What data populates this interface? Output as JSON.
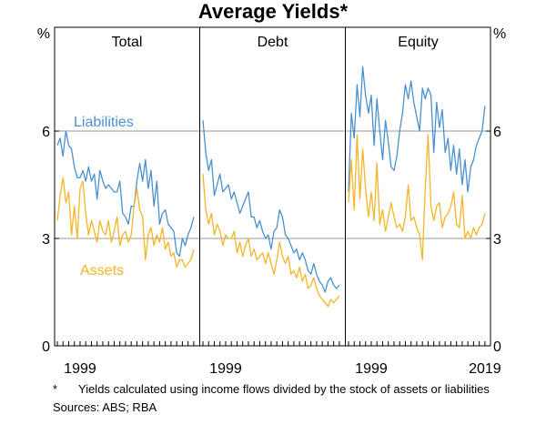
{
  "chart_data": {
    "type": "line",
    "title": "Average Yields*",
    "unit_label_left": "%",
    "unit_label_right": "%",
    "ylim": [
      0,
      8.9
    ],
    "yticks": [
      0,
      3,
      6
    ],
    "ytick_labels": [
      "0",
      "3",
      "6"
    ],
    "series_styles": [
      {
        "name": "Liabilities",
        "color": "#4a90d0"
      },
      {
        "name": "Assets",
        "color": "#f5b526"
      }
    ],
    "panels": [
      {
        "title": "Total",
        "xlim": [
          1995.0,
          2019.5
        ],
        "xtick_labels": [
          {
            "x": 1999,
            "label": "1999"
          }
        ],
        "series": [
          {
            "name": "Liabilities",
            "x": [
              1995.0,
              1995.5,
              1996.0,
              1996.5,
              1997.0,
              1997.5,
              1998.0,
              1998.5,
              1999.0,
              1999.5,
              2000.0,
              2000.5,
              2001.0,
              2001.5,
              2002.0,
              2002.5,
              2003.0,
              2003.5,
              2004.0,
              2004.5,
              2005.0,
              2005.5,
              2006.0,
              2006.5,
              2007.0,
              2007.5,
              2008.0,
              2008.5,
              2009.0,
              2009.5,
              2010.0,
              2010.5,
              2011.0,
              2011.5,
              2012.0,
              2012.5,
              2013.0,
              2013.5,
              2014.0,
              2014.5,
              2015.0,
              2015.5,
              2016.0,
              2016.5,
              2017.0,
              2017.5,
              2018.0,
              2018.5,
              2019.0
            ],
            "y": [
              5.6,
              5.8,
              5.3,
              6.0,
              5.6,
              5.5,
              5.0,
              4.7,
              4.7,
              4.9,
              4.6,
              5.0,
              4.6,
              4.8,
              4.1,
              4.9,
              4.6,
              4.4,
              4.5,
              4.4,
              4.3,
              4.3,
              4.6,
              3.7,
              3.6,
              3.4,
              3.9,
              3.9,
              4.6,
              5.1,
              4.6,
              5.2,
              4.4,
              4.9,
              3.9,
              4.6,
              3.4,
              3.7,
              3.8,
              3.4,
              3.3,
              3.2,
              2.6,
              2.5,
              3.0,
              2.8,
              3.1,
              3.3,
              3.6
            ]
          },
          {
            "name": "Assets",
            "x": [
              1995.0,
              1995.5,
              1996.0,
              1996.5,
              1997.0,
              1997.5,
              1998.0,
              1998.5,
              1999.0,
              1999.5,
              2000.0,
              2000.5,
              2001.0,
              2001.5,
              2002.0,
              2002.5,
              2003.0,
              2003.5,
              2004.0,
              2004.5,
              2005.0,
              2005.5,
              2006.0,
              2006.5,
              2007.0,
              2007.5,
              2008.0,
              2008.5,
              2009.0,
              2009.5,
              2010.0,
              2010.5,
              2011.0,
              2011.5,
              2012.0,
              2012.5,
              2013.0,
              2013.5,
              2014.0,
              2014.5,
              2015.0,
              2015.5,
              2016.0,
              2016.5,
              2017.0,
              2017.5,
              2018.0,
              2018.5,
              2019.0
            ],
            "y": [
              3.5,
              4.2,
              4.7,
              4.0,
              4.3,
              3.1,
              3.9,
              3.0,
              4.4,
              4.6,
              3.7,
              3.1,
              3.5,
              3.2,
              2.9,
              3.5,
              3.2,
              3.1,
              3.5,
              2.9,
              3.2,
              3.6,
              2.8,
              3.1,
              3.2,
              2.9,
              3.1,
              3.9,
              4.4,
              3.8,
              3.6,
              2.4,
              3.1,
              3.3,
              2.8,
              3.1,
              2.9,
              3.3,
              2.7,
              2.9,
              2.5,
              2.6,
              2.2,
              2.4,
              2.4,
              2.2,
              2.3,
              2.4,
              2.7
            ]
          }
        ]
      },
      {
        "title": "Debt",
        "xlim": [
          1995.0,
          2019.5
        ],
        "xtick_labels": [
          {
            "x": 1999,
            "label": "1999"
          }
        ],
        "series": [
          {
            "name": "Liabilities",
            "x": [
              1995.0,
              1995.5,
              1996.0,
              1996.5,
              1997.0,
              1997.5,
              1998.0,
              1998.5,
              1999.0,
              1999.5,
              2000.0,
              2000.5,
              2001.0,
              2001.5,
              2002.0,
              2002.5,
              2003.0,
              2003.5,
              2004.0,
              2004.5,
              2005.0,
              2005.5,
              2006.0,
              2006.5,
              2007.0,
              2007.5,
              2008.0,
              2008.5,
              2009.0,
              2009.5,
              2010.0,
              2010.5,
              2011.0,
              2011.5,
              2012.0,
              2012.5,
              2013.0,
              2013.5,
              2014.0,
              2014.5,
              2015.0,
              2015.5,
              2016.0,
              2016.5,
              2017.0,
              2017.5,
              2018.0,
              2018.5,
              2019.0
            ],
            "y": [
              6.3,
              5.4,
              4.9,
              5.2,
              4.2,
              4.5,
              4.8,
              4.3,
              4.4,
              4.5,
              4.1,
              4.3,
              4.0,
              3.7,
              3.9,
              4.1,
              4.3,
              3.6,
              3.6,
              3.3,
              3.5,
              3.2,
              3.0,
              3.1,
              2.7,
              3.2,
              3.3,
              3.8,
              3.6,
              3.1,
              3.0,
              2.8,
              2.6,
              2.7,
              2.4,
              2.6,
              2.4,
              2.1,
              2.0,
              2.3,
              2.0,
              1.8,
              1.7,
              1.5,
              1.8,
              1.9,
              1.7,
              1.6,
              1.7
            ]
          },
          {
            "name": "Assets",
            "x": [
              1995.0,
              1995.5,
              1996.0,
              1996.5,
              1997.0,
              1997.5,
              1998.0,
              1998.5,
              1999.0,
              1999.5,
              2000.0,
              2000.5,
              2001.0,
              2001.5,
              2002.0,
              2002.5,
              2003.0,
              2003.5,
              2004.0,
              2004.5,
              2005.0,
              2005.5,
              2006.0,
              2006.5,
              2007.0,
              2007.5,
              2008.0,
              2008.5,
              2009.0,
              2009.5,
              2010.0,
              2010.5,
              2011.0,
              2011.5,
              2012.0,
              2012.5,
              2013.0,
              2013.5,
              2014.0,
              2014.5,
              2015.0,
              2015.5,
              2016.0,
              2016.5,
              2017.0,
              2017.5,
              2018.0,
              2018.5,
              2019.0
            ],
            "y": [
              4.8,
              3.8,
              3.4,
              3.7,
              3.1,
              3.4,
              3.2,
              2.8,
              3.1,
              3.0,
              3.0,
              3.2,
              2.6,
              2.9,
              2.5,
              2.8,
              3.0,
              2.5,
              2.7,
              2.4,
              2.5,
              2.6,
              2.3,
              2.6,
              2.3,
              2.0,
              2.4,
              2.9,
              2.5,
              2.3,
              2.5,
              2.0,
              2.1,
              1.9,
              2.2,
              1.8,
              2.0,
              1.6,
              1.7,
              1.9,
              1.6,
              1.4,
              1.3,
              1.2,
              1.1,
              1.3,
              1.2,
              1.3,
              1.4
            ]
          }
        ]
      },
      {
        "title": "Equity",
        "xlim": [
          1995.0,
          2019.5
        ],
        "xtick_labels": [
          {
            "x": 1999,
            "label": "1999"
          },
          {
            "x": 2019,
            "label": "2019"
          }
        ],
        "series": [
          {
            "name": "Liabilities",
            "x": [
              1995.0,
              1995.5,
              1996.0,
              1996.5,
              1997.0,
              1997.5,
              1998.0,
              1998.5,
              1999.0,
              1999.5,
              2000.0,
              2000.5,
              2001.0,
              2001.5,
              2002.0,
              2002.5,
              2003.0,
              2003.5,
              2004.0,
              2004.5,
              2005.0,
              2005.5,
              2006.0,
              2006.5,
              2007.0,
              2007.5,
              2008.0,
              2008.5,
              2009.0,
              2009.5,
              2010.0,
              2010.5,
              2011.0,
              2011.5,
              2012.0,
              2012.5,
              2013.0,
              2013.5,
              2014.0,
              2014.5,
              2015.0,
              2015.5,
              2016.0,
              2016.5,
              2017.0,
              2017.5,
              2018.0,
              2018.5,
              2019.0
            ],
            "y": [
              4.3,
              6.5,
              5.8,
              7.3,
              6.4,
              7.8,
              7.0,
              6.5,
              7.0,
              5.6,
              6.9,
              6.0,
              5.2,
              6.3,
              5.7,
              5.0,
              4.9,
              5.3,
              6.0,
              6.5,
              7.3,
              6.9,
              7.4,
              6.8,
              6.4,
              6.0,
              7.2,
              6.9,
              7.2,
              7.0,
              5.4,
              6.8,
              6.1,
              6.6,
              5.4,
              5.8,
              4.9,
              5.6,
              4.8,
              5.5,
              4.5,
              5.2,
              4.3,
              5.0,
              5.2,
              5.6,
              5.8,
              6.0,
              6.7
            ]
          },
          {
            "name": "Assets",
            "x": [
              1995.0,
              1995.5,
              1996.0,
              1996.5,
              1997.0,
              1997.5,
              1998.0,
              1998.5,
              1999.0,
              1999.5,
              2000.0,
              2000.5,
              2001.0,
              2001.5,
              2002.0,
              2002.5,
              2003.0,
              2003.5,
              2004.0,
              2004.5,
              2005.0,
              2005.5,
              2006.0,
              2006.5,
              2007.0,
              2007.5,
              2008.0,
              2008.5,
              2009.0,
              2009.5,
              2010.0,
              2010.5,
              2011.0,
              2011.5,
              2012.0,
              2012.5,
              2013.0,
              2013.5,
              2014.0,
              2014.5,
              2015.0,
              2015.5,
              2016.0,
              2016.5,
              2017.0,
              2017.5,
              2018.0,
              2018.5,
              2019.0
            ],
            "y": [
              4.0,
              5.2,
              3.8,
              5.9,
              4.1,
              5.5,
              4.4,
              3.6,
              4.3,
              3.5,
              5.1,
              3.4,
              3.8,
              3.2,
              3.6,
              4.0,
              3.6,
              3.3,
              3.4,
              3.2,
              3.6,
              4.5,
              3.5,
              3.6,
              3.3,
              3.1,
              2.4,
              4.4,
              5.9,
              3.9,
              3.5,
              3.9,
              4.0,
              3.3,
              3.6,
              3.7,
              3.9,
              4.3,
              3.4,
              3.3,
              4.2,
              3.0,
              3.2,
              3.0,
              3.3,
              3.1,
              3.3,
              3.4,
              3.7
            ]
          }
        ]
      }
    ],
    "annotations": [
      {
        "text": "Liabilities",
        "color": "#4a90d0"
      },
      {
        "text": "Assets",
        "color": "#f5b526"
      }
    ]
  },
  "footnote": {
    "marker": "*",
    "text": "Yields calculated using income flows divided by the stock of assets or liabilities"
  },
  "source": "Sources:   ABS; RBA"
}
